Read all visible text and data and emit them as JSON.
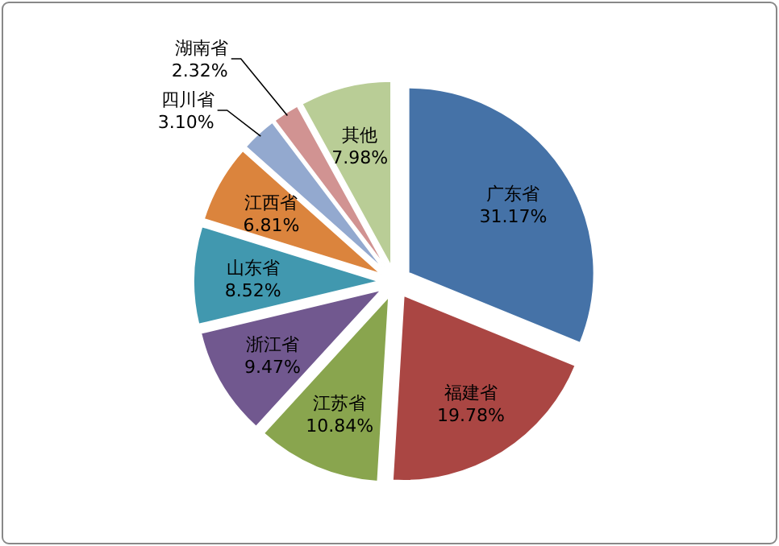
{
  "chart_data": {
    "type": "pie",
    "categories": [
      "广东省",
      "福建省",
      "江苏省",
      "浙江省",
      "山东省",
      "江西省",
      "四川省",
      "湖南省",
      "其他"
    ],
    "values": [
      31.17,
      19.78,
      10.84,
      9.47,
      8.52,
      6.81,
      3.1,
      2.32,
      7.98
    ],
    "value_labels": [
      "31.17%",
      "19.78%",
      "10.84%",
      "9.47%",
      "8.52%",
      "6.81%",
      "3.10%",
      "2.32%",
      "7.98%"
    ],
    "colors": [
      "#4572a7",
      "#aa4643",
      "#89a54e",
      "#71588f",
      "#4198af",
      "#db843d",
      "#93a9cf",
      "#d19392",
      "#b9cd96"
    ]
  }
}
